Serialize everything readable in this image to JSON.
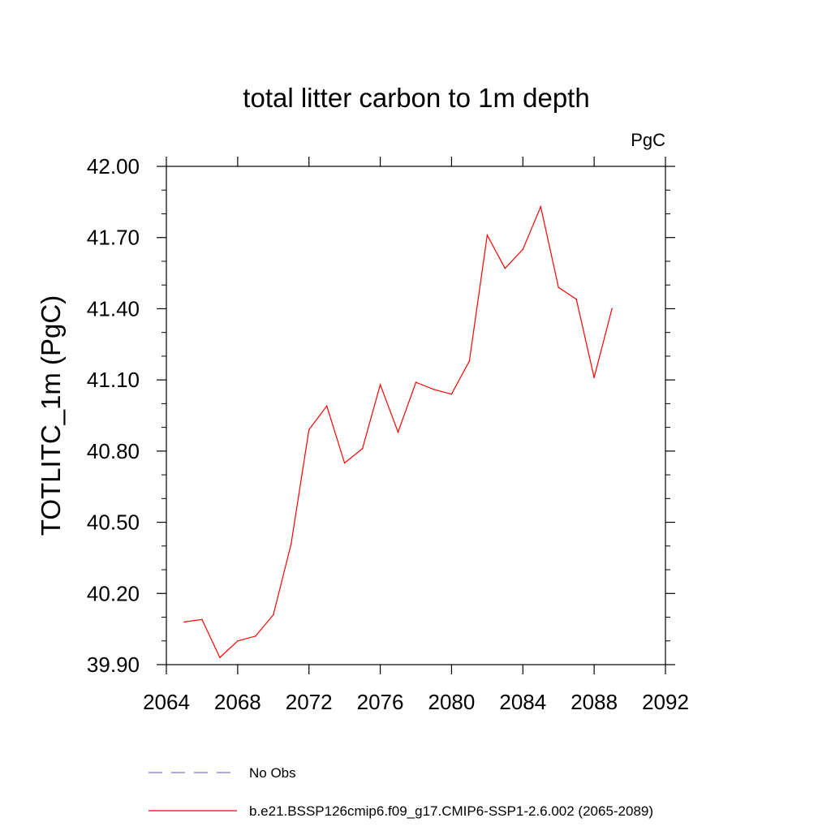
{
  "chart_data": {
    "type": "line",
    "title": "total litter carbon to 1m depth",
    "units_label": "PgC",
    "ylabel": "TOTLITC_1m  (PgC)",
    "xlabel": "",
    "xlim": [
      2064,
      2092
    ],
    "ylim": [
      39.9,
      42.0
    ],
    "x_ticks": [
      "2064",
      "2068",
      "2072",
      "2076",
      "2080",
      "2084",
      "2088",
      "2092"
    ],
    "y_ticks": [
      "39.90",
      "40.20",
      "40.50",
      "40.80",
      "41.10",
      "41.40",
      "41.70",
      "42.00"
    ],
    "series": [
      {
        "name": "b.e21.BSSP126cmip6.f09_g17.CMIP6-SSP1-2.6.002 (2065-2089)",
        "color": "#ff0000",
        "x": [
          2065,
          2066,
          2067,
          2068,
          2069,
          2070,
          2071,
          2072,
          2073,
          2074,
          2075,
          2076,
          2077,
          2078,
          2079,
          2080,
          2081,
          2082,
          2083,
          2084,
          2085,
          2086,
          2087,
          2088,
          2089
        ],
        "y": [
          40.08,
          40.09,
          39.93,
          40.0,
          40.02,
          40.11,
          40.41,
          40.89,
          40.99,
          40.75,
          40.81,
          41.08,
          40.88,
          41.09,
          41.06,
          41.04,
          41.18,
          41.71,
          41.57,
          41.65,
          41.83,
          41.49,
          41.44,
          41.11,
          41.4
        ]
      }
    ],
    "legend": [
      {
        "label": "No Obs",
        "color": "#7b7bd6",
        "style": "dashed"
      },
      {
        "label": "b.e21.BSSP126cmip6.f09_g17.CMIP6-SSP1-2.6.002 (2065-2089)",
        "color": "#ff0000",
        "style": "solid"
      }
    ],
    "legend_position": "bottom"
  }
}
